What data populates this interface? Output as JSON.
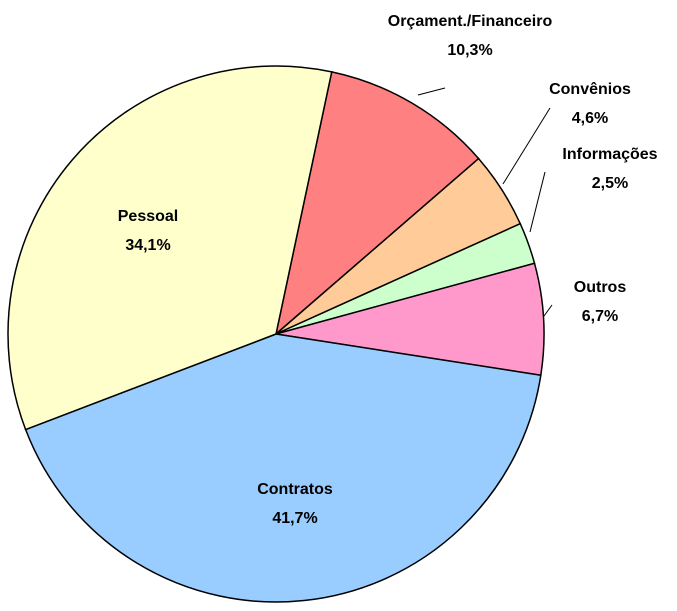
{
  "chart_data": {
    "type": "pie",
    "categories": [
      "Orçament./Financeiro",
      "Convênios",
      "Informações",
      "Outros",
      "Contratos",
      "Pessoal"
    ],
    "values": [
      10.3,
      4.6,
      2.5,
      6.7,
      41.7,
      34.1
    ],
    "value_labels": [
      "10,3%",
      "4,6%",
      "2,5%",
      "6,7%",
      "41,7%",
      "34,1%"
    ],
    "colors": [
      "#ff8080",
      "#ffcc99",
      "#ccffcc",
      "#ff99cc",
      "#99ccff",
      "#ffffcc"
    ]
  }
}
